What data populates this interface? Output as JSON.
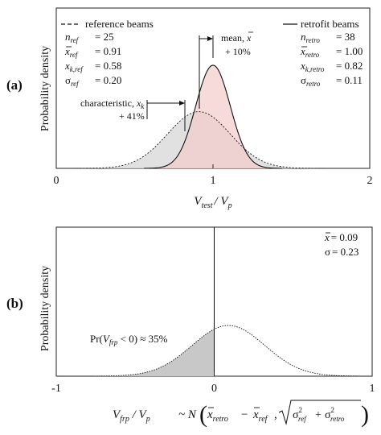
{
  "chart_data": [
    {
      "panel": "(a)",
      "type": "line",
      "ylabel": "Probability density",
      "xlabel": {
        "main": "V",
        "sub1": "test",
        "mid": "/ V",
        "sub2": "p"
      },
      "xlim": [
        0,
        2
      ],
      "xticks": [
        "0",
        "1",
        "2"
      ],
      "series": [
        {
          "name": "reference beams",
          "line_style": "dashed",
          "fill": "#dcdcdc",
          "mean": 0.91,
          "sd": 0.2,
          "stats": [
            {
              "sym": "n",
              "sub": "ref",
              "val": "= 25"
            },
            {
              "sym": "x",
              "bar": true,
              "sub": "ref",
              "val": "= 0.91"
            },
            {
              "sym": "x",
              "sub": "k,ref",
              "val": "= 0.58"
            },
            {
              "sym": "σ",
              "sub": "ref",
              "val": "= 0.20"
            }
          ]
        },
        {
          "name": "retrofit beams",
          "line_style": "solid",
          "fill": "#f4cccc",
          "mean": 1.0,
          "sd": 0.11,
          "stats": [
            {
              "sym": "n",
              "sub": "retro",
              "val": "= 38"
            },
            {
              "sym": "x",
              "bar": true,
              "sub": "retro",
              "val": "= 1.00"
            },
            {
              "sym": "x",
              "sub": "k,retro",
              "val": "= 0.82"
            },
            {
              "sym": "σ",
              "sub": "retro",
              "val": "= 0.11"
            }
          ]
        }
      ],
      "annotations": {
        "mean_label": "mean,",
        "mean_change": "+ 10%",
        "char_label": "characteristic,",
        "char_change": "+ 41%"
      }
    },
    {
      "panel": "(b)",
      "type": "line",
      "ylabel": "Probability density",
      "xlim": [
        -1,
        1
      ],
      "xticks": [
        "-1",
        "0",
        "1"
      ],
      "series": [
        {
          "line_style": "dotted",
          "mean": 0.09,
          "sd": 0.23,
          "shade_below": 0,
          "shade": "#c8c8c8"
        }
      ],
      "stats": [
        {
          "sym": "x",
          "bar": true,
          "val": "= 0.09"
        },
        {
          "sym": "σ",
          "val": "= 0.23"
        }
      ],
      "annotation": {
        "pre": "Pr(",
        "var": "V",
        "sub": "frp",
        "post": " < 0) ≈ 35%"
      },
      "formula": {
        "lhs": "V",
        "lhs_sub1": "frp",
        "lhs_mid": " / V",
        "lhs_sub2": "p",
        "dist": "~ N",
        "term1": "x",
        "term1_sub": "retro",
        "minus": "−",
        "term2": "x",
        "term2_sub": "ref",
        "sep": ",",
        "sigma": "σ",
        "sq": "2",
        "ref": "ref",
        "plus": "+",
        "retro": "retro"
      }
    }
  ]
}
